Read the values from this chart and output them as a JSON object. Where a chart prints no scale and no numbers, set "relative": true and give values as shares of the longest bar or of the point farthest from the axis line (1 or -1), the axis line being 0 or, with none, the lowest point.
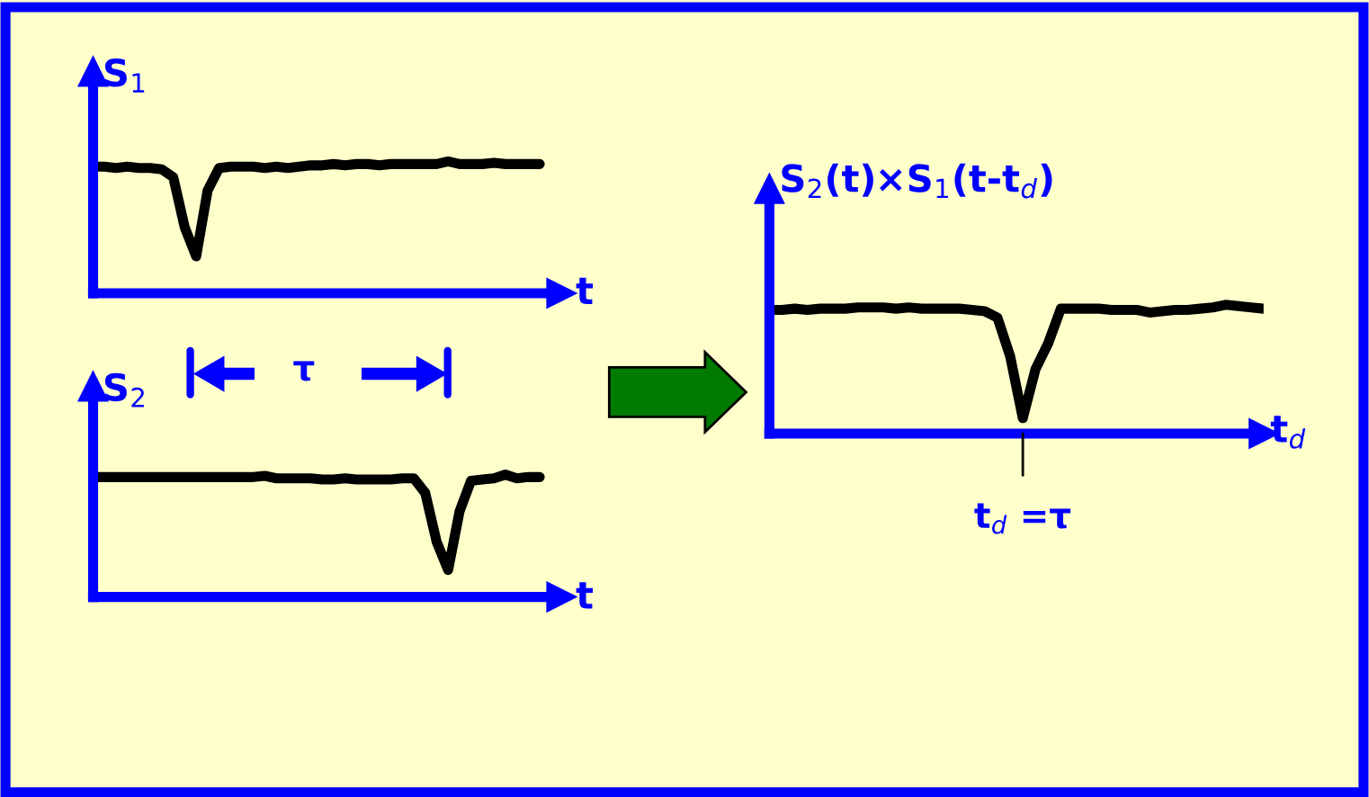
{
  "chart_data": [
    {
      "type": "line",
      "relative": true,
      "ylabel": "S$_{1}$",
      "xlabel": "t",
      "annotations": [
        "τ"
      ],
      "categories": [
        null,
        null,
        null,
        null,
        null,
        null,
        null,
        null,
        null,
        null,
        null,
        null,
        null,
        null,
        null,
        null,
        null,
        null,
        null,
        null,
        null,
        null,
        null,
        null,
        null,
        null,
        null,
        null,
        null,
        null,
        null,
        null,
        null,
        null,
        null,
        null,
        null,
        null,
        null,
        null
      ],
      "series": [
        {
          "color": "#000000",
          "values": [
            0.96,
            0.96,
            0.95,
            0.96,
            0.95,
            0.95,
            0.94,
            0.88,
            0.5,
            0.28,
            0.78,
            0.95,
            0.96,
            0.96,
            0.96,
            0.95,
            0.96,
            0.95,
            0.96,
            0.97,
            0.97,
            0.98,
            0.97,
            0.98,
            0.98,
            0.97,
            0.98,
            0.98,
            0.98,
            0.98,
            0.98,
            1.0,
            0.98,
            0.98,
            0.98,
            0.99,
            0.98,
            0.98,
            0.98,
            0.98
          ]
        }
      ]
    },
    {
      "type": "line",
      "relative": true,
      "ylabel": "S$_{2}$",
      "xlabel": "t",
      "categories": [
        null,
        null,
        null,
        null,
        null,
        null,
        null,
        null,
        null,
        null,
        null,
        null,
        null,
        null,
        null,
        null,
        null,
        null,
        null,
        null,
        null,
        null,
        null,
        null,
        null,
        null,
        null,
        null,
        null,
        null,
        null,
        null,
        null,
        null,
        null,
        null,
        null,
        null,
        null,
        null
      ],
      "series": [
        {
          "color": "#000000",
          "values": [
            0.98,
            0.98,
            0.98,
            0.98,
            0.98,
            0.98,
            0.98,
            0.98,
            0.98,
            0.98,
            0.98,
            0.98,
            0.98,
            0.98,
            0.98,
            0.99,
            0.97,
            0.97,
            0.97,
            0.97,
            0.96,
            0.96,
            0.97,
            0.96,
            0.96,
            0.96,
            0.96,
            0.97,
            0.97,
            0.85,
            0.45,
            0.22,
            0.7,
            0.95,
            0.96,
            0.97,
            1.0,
            0.97,
            0.98,
            0.98
          ]
        }
      ]
    },
    {
      "type": "line",
      "relative": true,
      "ylabel": "S$_{2}$(t)×S$_{1}$(t-t$_{d}$)",
      "xlabel": "t$_{d}$",
      "annotations": [
        "t$_{d}$ =τ"
      ],
      "categories": [
        null,
        null,
        null,
        null,
        null,
        null,
        null,
        null,
        null,
        null,
        null,
        null,
        null,
        null,
        null,
        null,
        null,
        null,
        null,
        null,
        null,
        null,
        null,
        null,
        null,
        null,
        null,
        null,
        null,
        null,
        null,
        null,
        null,
        null,
        null,
        null,
        null,
        null,
        null,
        null
      ],
      "series": [
        {
          "color": "#000000",
          "values": [
            0.96,
            0.96,
            0.97,
            0.96,
            0.97,
            0.97,
            0.97,
            0.98,
            0.98,
            0.98,
            0.97,
            0.98,
            0.97,
            0.97,
            0.97,
            0.97,
            0.96,
            0.95,
            0.9,
            0.6,
            0.12,
            0.5,
            0.7,
            0.97,
            0.97,
            0.97,
            0.97,
            0.96,
            0.96,
            0.96,
            0.94,
            0.95,
            0.96,
            0.96,
            0.97,
            0.98,
            1.0,
            0.99,
            0.98,
            0.97
          ]
        }
      ]
    }
  ]
}
